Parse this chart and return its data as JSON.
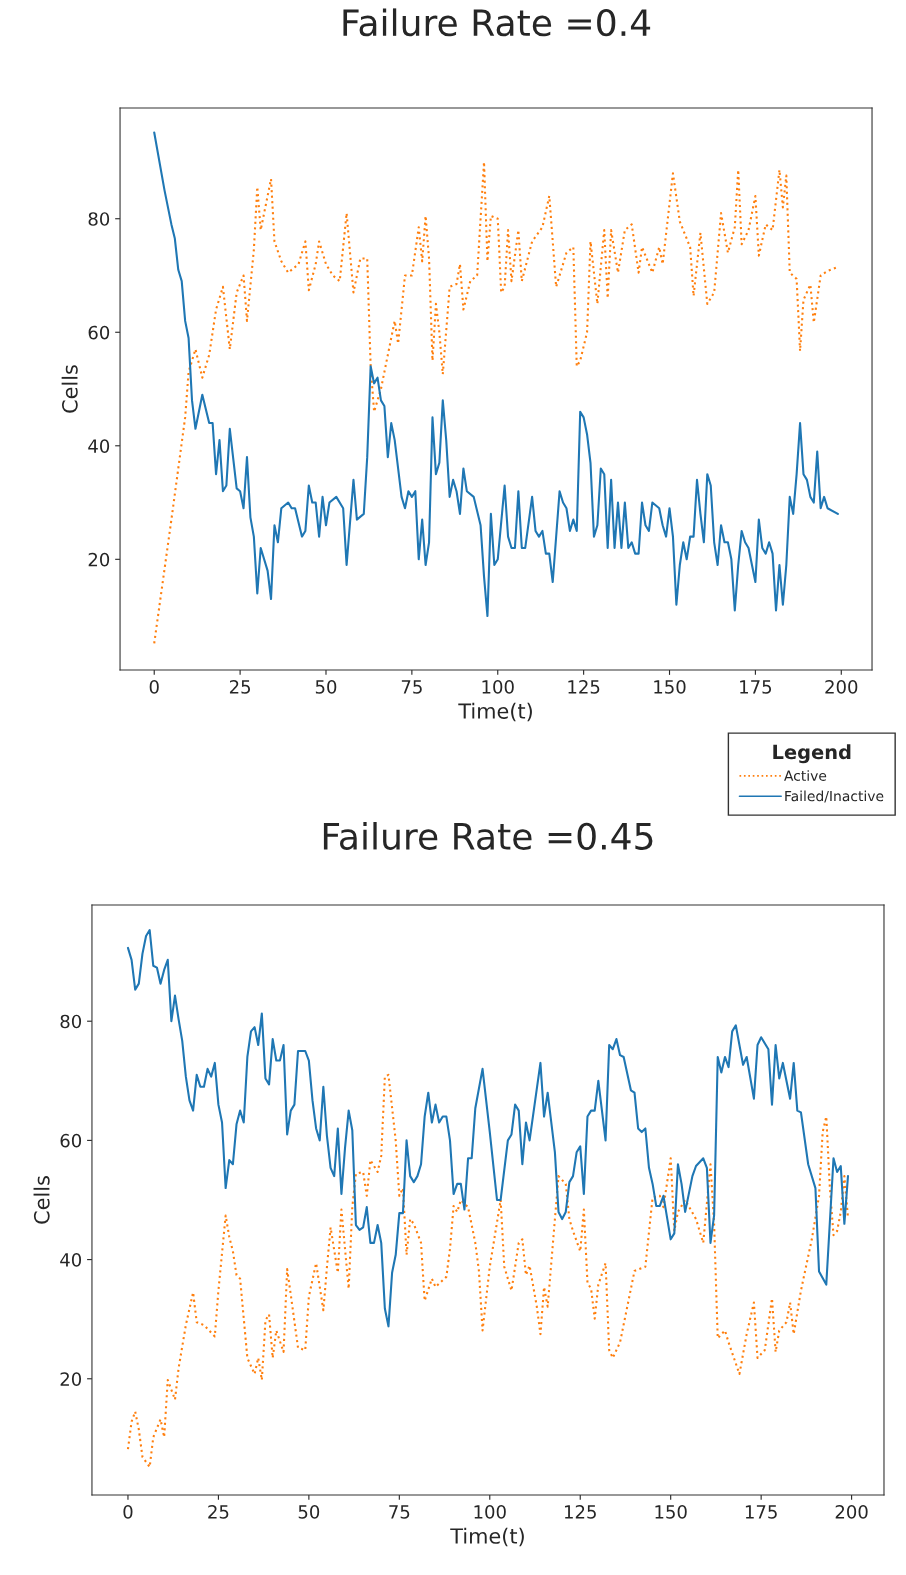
{
  "chart_data": [
    {
      "type": "line",
      "title": "Failure Rate =0.4",
      "xlabel": "Time(t)",
      "ylabel": "Cells",
      "legend_title": "Legend",
      "legend": "bottom right",
      "grid": false,
      "xlim": [
        -9.95,
        208.95
      ],
      "ylim": [
        0.5,
        99.5
      ],
      "xticks": [
        0,
        25,
        50,
        75,
        100,
        125,
        150,
        175,
        200
      ],
      "yticks": [
        20,
        40,
        60,
        80
      ],
      "series": [
        {
          "name": "Active",
          "color": "#ff7f0e",
          "line_style": "dotted",
          "x": [
            0,
            5,
            9,
            10,
            12,
            14,
            16,
            18,
            20,
            22,
            24,
            26,
            27,
            29,
            30,
            31,
            33,
            34,
            35,
            37,
            39,
            42,
            44,
            45,
            47,
            48,
            50,
            52,
            54,
            56,
            58,
            60,
            62,
            63,
            64,
            66,
            68,
            70,
            71,
            73,
            75,
            77,
            78,
            79,
            80,
            81,
            82,
            83,
            84,
            86,
            88,
            89,
            90,
            92,
            94,
            96,
            97,
            98,
            100,
            101,
            102,
            103,
            104,
            106,
            107,
            110,
            113,
            115,
            117,
            120,
            122,
            123,
            124,
            126,
            127,
            129,
            131,
            132,
            133,
            135,
            137,
            139,
            141,
            142,
            145,
            147,
            148,
            151,
            153,
            156,
            157,
            159,
            161,
            163,
            165,
            167,
            169,
            170,
            171,
            173,
            175,
            176,
            178,
            180,
            182,
            183,
            184,
            185,
            187,
            188,
            189,
            191,
            192,
            194,
            196,
            199
          ],
          "values": [
            5.2,
            27,
            45,
            53,
            57,
            52,
            56,
            64,
            68,
            57,
            67,
            70,
            62,
            74.5,
            85.6,
            78,
            84,
            87,
            76,
            72.5,
            70.5,
            72,
            76,
            67.4,
            72,
            76,
            72,
            70,
            69,
            81,
            67,
            73,
            73,
            54,
            46,
            50,
            56,
            62,
            58,
            70,
            70,
            78.5,
            72.5,
            80.5,
            73,
            55,
            65,
            60,
            52.6,
            68,
            68.5,
            72,
            64,
            69,
            70,
            90,
            72.5,
            80.5,
            80,
            67,
            68,
            78,
            69,
            78,
            69,
            76,
            78.5,
            84,
            68,
            74,
            75,
            54,
            55,
            60,
            76,
            65,
            78,
            66,
            78,
            70.5,
            78,
            79,
            70.5,
            75,
            70.5,
            75,
            72,
            88,
            79.5,
            75,
            66.4,
            77.5,
            65,
            67,
            81,
            74,
            78.5,
            88.6,
            75.5,
            78,
            84,
            73.5,
            79,
            78,
            88.6,
            82,
            87.6,
            70.5,
            69.4,
            56.7,
            65.7,
            68.4,
            61.7,
            70,
            70.8,
            71.5
          ]
        },
        {
          "name": "Failed/Inactive",
          "color": "#1f77b4",
          "line_style": "solid",
          "x": [
            0,
            3,
            5,
            6,
            7,
            8,
            9,
            10,
            11,
            12,
            14,
            16,
            17,
            18,
            19,
            20,
            21,
            22,
            24,
            25,
            26,
            27,
            28,
            29,
            30,
            31,
            33,
            34,
            35,
            36,
            37,
            39,
            40,
            41,
            43,
            44,
            45,
            46,
            47,
            48,
            49,
            50,
            51,
            53,
            55,
            56,
            58,
            59,
            61,
            62,
            63,
            64,
            65,
            66,
            67,
            68,
            69,
            70,
            72,
            73,
            74,
            75,
            76,
            77,
            78,
            79,
            80,
            81,
            82,
            83,
            84,
            85,
            86,
            87,
            88,
            89,
            90,
            91,
            93,
            95,
            96,
            97,
            98,
            99,
            100,
            102,
            103,
            104,
            105,
            106,
            107,
            108,
            110,
            111,
            112,
            113,
            114,
            115,
            116,
            118,
            119,
            120,
            121,
            122,
            123,
            124,
            125,
            126,
            127,
            128,
            129,
            130,
            131,
            132,
            133,
            134,
            135,
            136,
            137,
            138,
            139,
            140,
            141,
            142,
            143,
            144,
            145,
            147,
            148,
            149,
            150,
            151,
            152,
            153,
            154,
            155,
            156,
            157,
            158,
            159,
            160,
            161,
            162,
            163,
            164,
            165,
            166,
            167,
            168,
            169,
            170,
            171,
            172,
            173,
            174,
            175,
            176,
            177,
            178,
            179,
            180,
            181,
            182,
            183,
            184,
            185,
            186,
            187,
            188,
            189,
            190,
            191,
            192,
            193,
            194,
            195,
            196,
            199
          ],
          "values": [
            95.2,
            85,
            79,
            76.5,
            71,
            69,
            62,
            59,
            48,
            43,
            49,
            44,
            44,
            35,
            41,
            32,
            33,
            43,
            32.5,
            32,
            29,
            38,
            27.4,
            24,
            14,
            22,
            18,
            13,
            26,
            23,
            29,
            30,
            29,
            29,
            24,
            25,
            33,
            30,
            30,
            24,
            31,
            26,
            30,
            31,
            29,
            19,
            34,
            27,
            28,
            38,
            54,
            51,
            52,
            48,
            47,
            38,
            44,
            41,
            31,
            29,
            32,
            31,
            32,
            20,
            27,
            19,
            23,
            45,
            35,
            37,
            48,
            41,
            31,
            34,
            32,
            28,
            36,
            32,
            31,
            26,
            17,
            10,
            28,
            19,
            20,
            33,
            24,
            22,
            22,
            32,
            22,
            22,
            31,
            25,
            24,
            25,
            21,
            21,
            16,
            32,
            30,
            29,
            25,
            27,
            25,
            46,
            45,
            42,
            37,
            24,
            26,
            36,
            35,
            22,
            34,
            22,
            30,
            22,
            30,
            22,
            23,
            21,
            21,
            30,
            26,
            25,
            30,
            29,
            26,
            24,
            29,
            24,
            12,
            19,
            23,
            20,
            24,
            24,
            34,
            28,
            23,
            35,
            33,
            23,
            19,
            26,
            23,
            23,
            20,
            11,
            19,
            25,
            23,
            22,
            19,
            16,
            27,
            22,
            21,
            23,
            21,
            11,
            19,
            12,
            19,
            31,
            28,
            35,
            44,
            35,
            34,
            31,
            30,
            39,
            29,
            31,
            29,
            28
          ]
        }
      ]
    },
    {
      "type": "line",
      "title": "Failure Rate =0.45",
      "xlabel": "Time(t)",
      "ylabel": "Cells",
      "legend": false,
      "grid": false,
      "xlim": [
        -9.95,
        208.95
      ],
      "ylim": [
        0.5,
        99.5
      ],
      "xticks": [
        0,
        25,
        50,
        75,
        100,
        125,
        150,
        175,
        200
      ],
      "yticks": [
        20,
        40,
        60,
        80
      ],
      "series": [
        {
          "color": "#ff7f0e",
          "line_style": "dotted",
          "x": [
            0,
            1,
            2,
            3,
            4,
            6,
            7,
            9,
            10,
            11,
            13,
            14,
            16,
            18,
            19,
            21,
            24,
            25,
            27,
            28,
            29,
            30,
            31,
            33,
            35,
            36,
            37,
            38,
            39,
            40,
            41,
            43,
            44,
            45,
            47,
            49,
            50,
            52,
            54,
            55,
            56,
            58,
            59,
            61,
            62,
            63,
            65,
            66,
            67,
            69,
            70,
            71,
            72,
            74,
            75,
            76,
            77,
            78,
            79,
            81,
            82,
            84,
            85,
            88,
            89,
            90,
            91,
            92,
            94,
            96,
            97,
            98,
            100,
            103,
            104,
            106,
            108,
            109,
            110,
            111,
            113,
            114,
            115,
            116,
            118,
            119,
            121,
            122,
            123,
            125,
            126,
            127,
            128,
            129,
            130,
            132,
            133,
            134,
            136,
            138,
            140,
            143,
            145,
            147,
            148,
            150,
            151,
            152,
            154,
            157,
            159,
            161,
            162,
            163,
            165,
            166,
            169,
            171,
            173,
            174,
            176,
            178,
            179,
            180,
            182,
            183,
            184,
            186,
            189,
            191,
            192,
            193,
            194,
            195,
            196,
            197,
            198,
            199
          ],
          "values": [
            8.2,
            12.8,
            14.5,
            11.5,
            6.9,
            5.2,
            10.2,
            13.2,
            10.2,
            19.8,
            16.5,
            21.8,
            29,
            34.5,
            29.5,
            29,
            27.1,
            34.8,
            47.4,
            43.8,
            41.4,
            37.4,
            36.8,
            23.5,
            20.8,
            23.5,
            19.8,
            29.8,
            30.8,
            23.5,
            28.1,
            24.5,
            38.4,
            34.1,
            25.2,
            24.8,
            33.8,
            39.4,
            31.5,
            38.8,
            45.4,
            37.8,
            48.4,
            35.1,
            48.8,
            54.4,
            54.7,
            50.7,
            56.7,
            54.7,
            57.4,
            70.7,
            71,
            60,
            50.7,
            52,
            40.8,
            46.8,
            46,
            42.8,
            33.1,
            36.8,
            35.4,
            37.1,
            41.8,
            49,
            48,
            50,
            48.8,
            42.8,
            38.1,
            28.1,
            38.8,
            50,
            38.8,
            34.8,
            42.8,
            43.4,
            37.4,
            39,
            32.1,
            27.5,
            35.4,
            32.1,
            46.8,
            54,
            52.7,
            46.8,
            44.8,
            41.4,
            48.4,
            36.1,
            35.1,
            30.1,
            35.8,
            39.4,
            24.8,
            23.5,
            26.1,
            32.1,
            38.1,
            38.8,
            50.4,
            50.7,
            48.8,
            57,
            44.8,
            48,
            50,
            46.8,
            42.8,
            56,
            46,
            26.8,
            28.1,
            26.1,
            20.8,
            27.5,
            32.8,
            23.5,
            24.8,
            33.5,
            24.5,
            28.1,
            29.5,
            32.8,
            27.5,
            34.8,
            43.4,
            50.7,
            61.4,
            64,
            52,
            44.1,
            44.8,
            48,
            54,
            47
          ]
        },
        {
          "color": "#1f77b4",
          "line_style": "solid",
          "x": [
            0,
            1,
            2,
            3,
            4,
            5,
            6,
            7,
            8,
            9,
            10,
            11,
            12,
            13,
            14,
            15,
            16,
            17,
            18,
            19,
            20,
            21,
            22,
            23,
            24,
            25,
            26,
            27,
            28,
            29,
            30,
            31,
            32,
            33,
            34,
            35,
            36,
            37,
            38,
            39,
            40,
            41,
            42,
            43,
            44,
            45,
            46,
            47,
            49,
            50,
            51,
            52,
            53,
            54,
            55,
            56,
            57,
            58,
            59,
            60,
            61,
            62,
            63,
            64,
            65,
            66,
            67,
            68,
            69,
            70,
            71,
            72,
            73,
            74,
            75,
            76,
            77,
            78,
            79,
            80,
            81,
            82,
            83,
            84,
            85,
            86,
            87,
            88,
            89,
            90,
            91,
            92,
            93,
            94,
            95,
            96,
            98,
            100,
            102,
            103,
            105,
            106,
            107,
            108,
            109,
            110,
            111,
            114,
            115,
            116,
            118,
            119,
            120,
            121,
            122,
            123,
            124,
            125,
            126,
            127,
            128,
            129,
            130,
            132,
            133,
            134,
            135,
            136,
            137,
            139,
            140,
            141,
            142,
            143,
            144,
            145,
            146,
            147,
            148,
            150,
            151,
            152,
            153,
            154,
            156,
            157,
            159,
            160,
            161,
            162,
            163,
            164,
            165,
            166,
            167,
            168,
            170,
            171,
            173,
            174,
            175,
            177,
            178,
            179,
            180,
            181,
            183,
            184,
            185,
            186,
            188,
            190,
            191,
            193,
            195,
            196,
            197,
            198,
            199
          ],
          "values": [
            92.3,
            90.3,
            85.3,
            86.3,
            91.3,
            94.3,
            95.3,
            89.3,
            89,
            86.3,
            88.6,
            90.3,
            80,
            84.3,
            80.3,
            76.7,
            70.7,
            66.7,
            65,
            71,
            69,
            69,
            72,
            70.7,
            73,
            66,
            63,
            52,
            56.7,
            56,
            62.7,
            65,
            63,
            74,
            78.3,
            79,
            76,
            81.3,
            70.4,
            69.4,
            77,
            73.4,
            73.4,
            76,
            61,
            65,
            66,
            75,
            75,
            73.4,
            66.7,
            62,
            60,
            69,
            60.7,
            55.4,
            54,
            62,
            51,
            58.8,
            65,
            61.7,
            45.8,
            45,
            45.4,
            48.8,
            42.8,
            42.8,
            45.8,
            42.8,
            31.8,
            28.8,
            37.8,
            40.8,
            47.8,
            47.8,
            60,
            54,
            53,
            54,
            56,
            64,
            68,
            63,
            66,
            63,
            64,
            64,
            60,
            51,
            52.7,
            52.7,
            48.4,
            57,
            57,
            65.4,
            72,
            61.4,
            50,
            50,
            60,
            61,
            66,
            65,
            56,
            63,
            60,
            73,
            64,
            68,
            58,
            48,
            46.8,
            48,
            53,
            54,
            58,
            59,
            51,
            64,
            65,
            65,
            70,
            60,
            76,
            75.3,
            77,
            74.3,
            74,
            68.4,
            68,
            62,
            61.4,
            62,
            55.4,
            52.7,
            49,
            49,
            50.7,
            43.4,
            44.4,
            56,
            52.7,
            48,
            54,
            55.7,
            57,
            55.4,
            42.8,
            47.4,
            74,
            71.4,
            74,
            72.3,
            78.3,
            79.3,
            72.7,
            74,
            67,
            76,
            77.3,
            75.3,
            66,
            76,
            70.4,
            73,
            67,
            73,
            65,
            64.7,
            56,
            52,
            38,
            35.8,
            57,
            54.7,
            55.7,
            46,
            54
          ]
        }
      ]
    }
  ]
}
